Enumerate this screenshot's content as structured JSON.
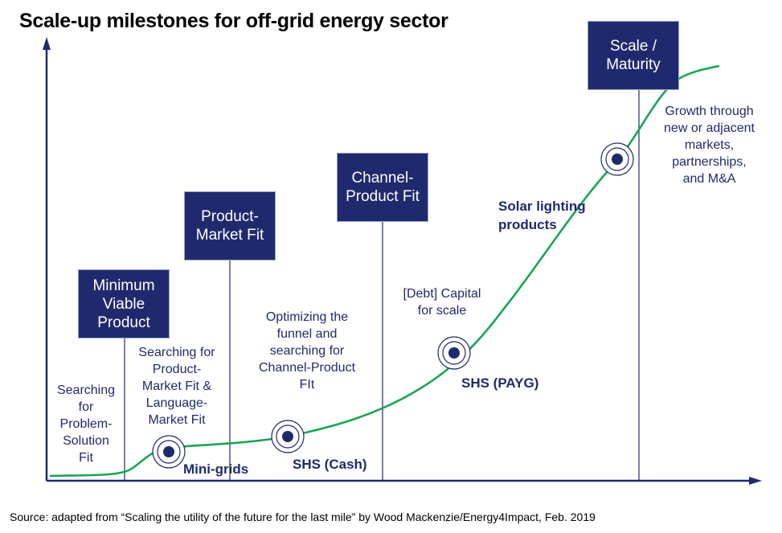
{
  "title": "Scale-up milestones for off-grid energy sector",
  "milestones": [
    {
      "name": "Minimum Viable Product",
      "lines": [
        "Minimum",
        "Viable",
        "Product"
      ]
    },
    {
      "name": "Product-Market Fit",
      "lines": [
        "Product-",
        "Market Fit"
      ]
    },
    {
      "name": "Channel-Product Fit",
      "lines": [
        "Channel-",
        "Product Fit"
      ]
    },
    {
      "name": "Scale / Maturity",
      "lines": [
        "Scale /",
        "Maturity"
      ]
    }
  ],
  "stages": [
    {
      "lines": [
        "Searching",
        "for",
        "Problem-",
        "Solution",
        "Fit"
      ]
    },
    {
      "lines": [
        "Searching for",
        "Product-",
        "Market Fit &",
        "Language-",
        "Market Fit"
      ]
    },
    {
      "lines": [
        "Optimizing the",
        "funnel and",
        "searching for",
        "Channel-Product",
        "FIt"
      ]
    },
    {
      "lines": [
        "[Debt] Capital",
        "for scale"
      ]
    },
    {
      "lines": [
        "Growth through",
        "new or adjacent",
        "markets,",
        "partnerships,",
        "and M&A"
      ]
    }
  ],
  "products": [
    {
      "label": "Mini-grids"
    },
    {
      "label": "SHS (Cash)"
    },
    {
      "label": "SHS (PAYG)"
    },
    {
      "lines": [
        "Solar lighting",
        "products"
      ]
    }
  ],
  "source": "Source: adapted from “Scaling the utility of the future for the last mile” by Wood Mackenzie/Energy4Impact, Feb. 2019",
  "colors": {
    "box": "#1f2a6e",
    "text": "#1f2a6e",
    "curve": "#1aa553",
    "axis": "#1f2a6e"
  }
}
